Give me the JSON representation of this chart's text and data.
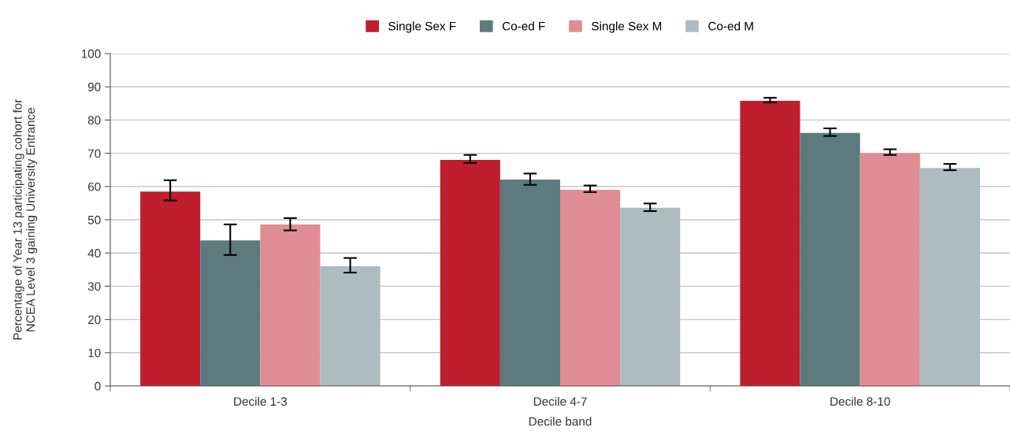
{
  "chart_data": {
    "type": "bar",
    "xlabel": "Decile band",
    "ylabel": "Percentage of Year 13 participating cohort for\nNCEA Level 3 gaining University Entrance",
    "categories": [
      "Decile 1-3",
      "Decile 4-7",
      "Decile 8-10"
    ],
    "series": [
      {
        "name": "Single Sex F",
        "color": "#be1e2d",
        "values": [
          58.5,
          68.0,
          85.8
        ],
        "errors": [
          [
            55.8,
            61.9
          ],
          [
            67.1,
            69.5
          ],
          [
            85.3,
            86.7
          ]
        ]
      },
      {
        "name": "Co-ed F",
        "color": "#5d7a7e",
        "values": [
          43.8,
          62.1,
          76.1
        ],
        "errors": [
          [
            39.4,
            48.6
          ],
          [
            60.5,
            63.9
          ],
          [
            75.2,
            77.5
          ]
        ]
      },
      {
        "name": "Single Sex M",
        "color": "#e08c94",
        "values": [
          48.6,
          59.0,
          70.1
        ],
        "errors": [
          [
            46.8,
            50.5
          ],
          [
            58.3,
            60.3
          ],
          [
            69.5,
            71.2
          ]
        ]
      },
      {
        "name": "Co-ed M",
        "color": "#adbcc0",
        "values": [
          36.0,
          53.6,
          65.6
        ],
        "errors": [
          [
            34.1,
            38.5
          ],
          [
            52.6,
            54.9
          ],
          [
            64.9,
            66.8
          ]
        ]
      }
    ],
    "ylim": [
      0,
      100
    ],
    "yticks": [
      0,
      10,
      20,
      30,
      40,
      50,
      60,
      70,
      80,
      90,
      100
    ],
    "grid": "y",
    "legend": "top"
  }
}
